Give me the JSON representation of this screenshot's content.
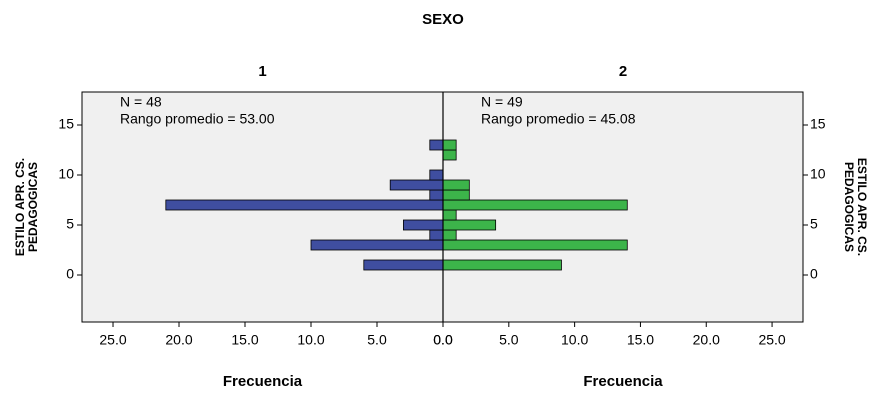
{
  "chart_data": {
    "type": "population-pyramid",
    "title": "SEXO",
    "y_label": [
      "ESTILO APR. CS.",
      "PEDAGOGICAS"
    ],
    "x_label": "Frecuencia",
    "y": [
      1,
      3,
      4,
      5,
      6,
      7,
      8,
      9,
      10,
      12,
      13
    ],
    "ylim": [
      -4.7,
      18.3
    ],
    "yticks": [
      0,
      5,
      10,
      15
    ],
    "xlim": [
      0,
      27.35
    ],
    "xticks": [
      {
        "value": 0,
        "label": "0.0"
      },
      {
        "value": 5,
        "label": "5.0"
      },
      {
        "value": 10,
        "label": "10.0"
      },
      {
        "value": 15,
        "label": "15.0"
      },
      {
        "value": 20,
        "label": "20.0"
      },
      {
        "value": 25,
        "label": "25.0"
      }
    ],
    "series": [
      {
        "name": "1",
        "color": "#3f4ea0",
        "values": [
          6,
          10,
          1,
          3,
          null,
          21,
          1,
          4,
          1,
          null,
          1
        ],
        "annotations": [
          "N = 48",
          "Rango promedio = 53.00"
        ]
      },
      {
        "name": "2",
        "color": "#3cb44a",
        "values": [
          9,
          14,
          1,
          4,
          1,
          14,
          2,
          2,
          null,
          1,
          1
        ],
        "annotations": [
          "N = 49",
          "Rango promedio = 45.08"
        ]
      }
    ]
  }
}
